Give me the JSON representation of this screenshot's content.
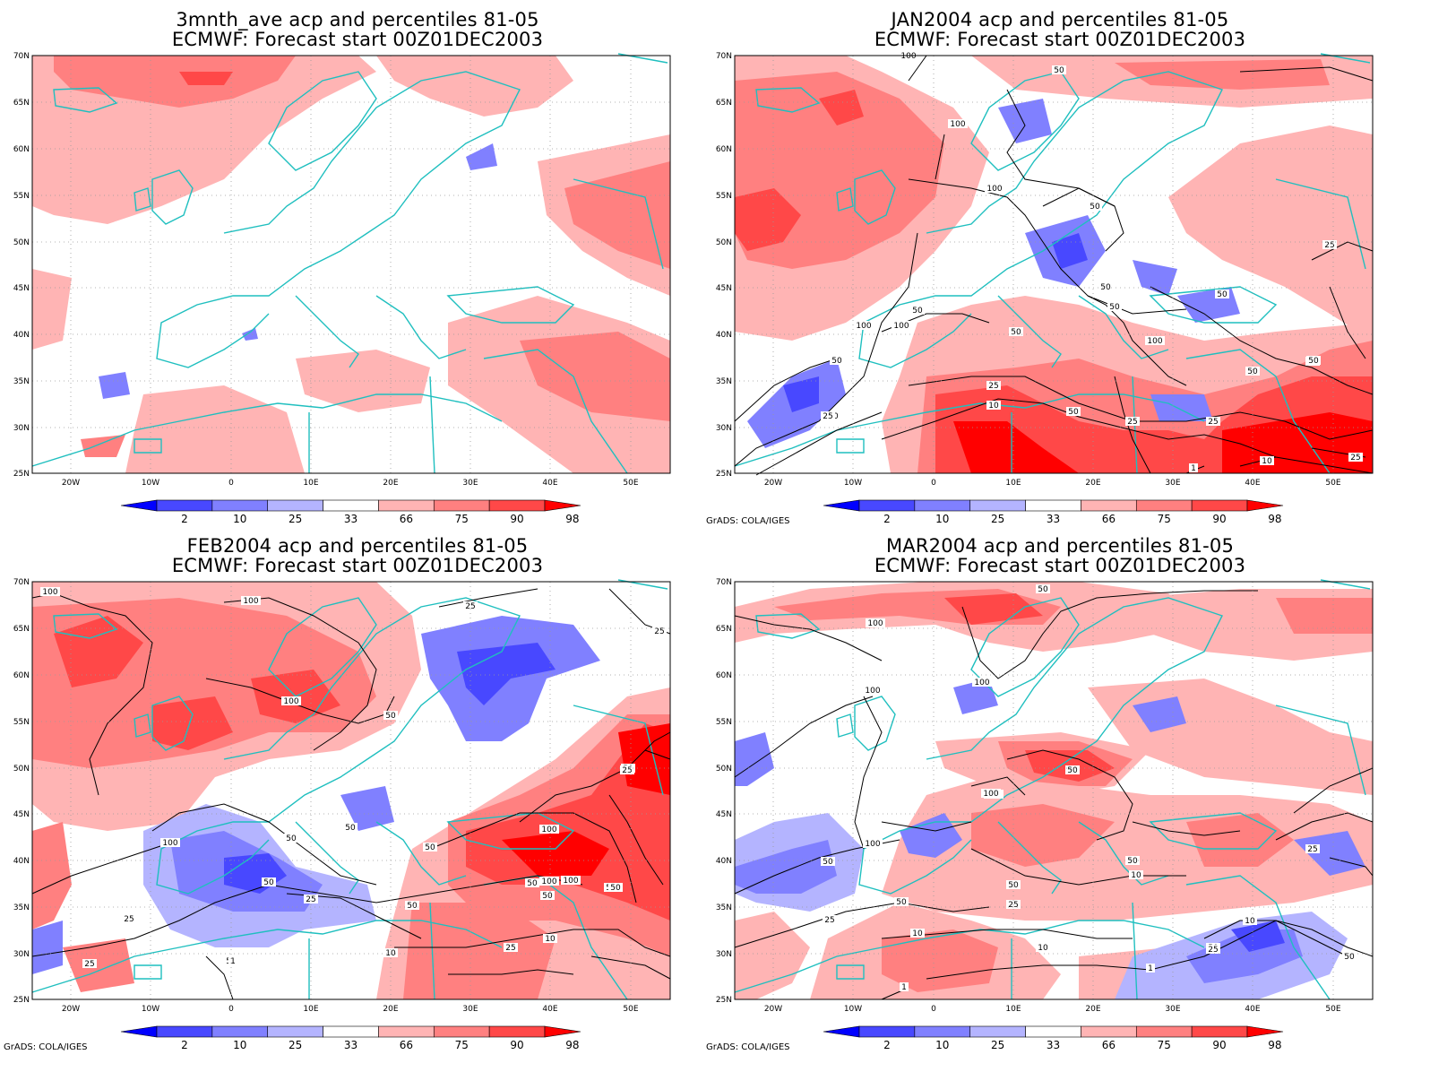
{
  "panels": [
    {
      "title": "3mnth_ave acp and percentiles 81-05",
      "subtitle": "ECMWF: Forecast start 00Z01DEC2003"
    },
    {
      "title": "JAN2004 acp and percentiles 81-05",
      "subtitle": "ECMWF: Forecast start 00Z01DEC2003"
    },
    {
      "title": "FEB2004 acp and percentiles 81-05",
      "subtitle": "ECMWF: Forecast start 00Z01DEC2003"
    },
    {
      "title": "MAR2004 acp and percentiles 81-05",
      "subtitle": "ECMWF: Forecast start 00Z01DEC2003"
    }
  ],
  "credit": "GrADS: COLA/IGES",
  "axes": {
    "lat_labels": [
      "70N",
      "65N",
      "60N",
      "55N",
      "50N",
      "45N",
      "40N",
      "35N",
      "30N",
      "25N"
    ],
    "lon_labels": [
      "20W",
      "10W",
      "0",
      "10E",
      "20E",
      "30E",
      "40E",
      "50E"
    ]
  },
  "colorbar": {
    "labels": [
      "2",
      "10",
      "25",
      "33",
      "66",
      "75",
      "90",
      "98"
    ],
    "colors": [
      "#0000ff",
      "#4848ff",
      "#8080ff",
      "#b4b4ff",
      "#ffffff",
      "#ffb4b4",
      "#ff8080",
      "#ff4848",
      "#ff0000"
    ]
  },
  "contours": {
    "panel1": [],
    "panel2": [
      "100",
      "50",
      "100",
      "50",
      "50",
      "100",
      "50",
      "100",
      "50",
      "100",
      "50",
      "50",
      "50",
      "50",
      "25",
      "10",
      "50",
      "10",
      "25",
      "25",
      "25",
      "10",
      "1",
      "10",
      "25",
      "50",
      "25",
      "100"
    ],
    "panel3": [
      "100",
      "100",
      "50",
      "25",
      "50",
      "25",
      "100",
      "50",
      "100",
      "50",
      "25",
      "50",
      "50",
      "100",
      "100",
      "50",
      "50",
      "50",
      "25",
      "50",
      "10",
      "25",
      "10",
      "50",
      "1",
      "25",
      "100",
      "50",
      "25"
    ],
    "panel4": [
      "50",
      "100",
      "100",
      "100",
      "100",
      "50",
      "100",
      "100",
      "50",
      "50",
      "50",
      "10",
      "50",
      "25",
      "25",
      "10",
      "10",
      "1",
      "50",
      "10",
      "25",
      "25",
      "1",
      "25",
      "50"
    ]
  },
  "colors": {
    "coast": "#1fbfbf",
    "contour": "#000000",
    "frame": "#000000",
    "grid": "#9a9a9a"
  }
}
